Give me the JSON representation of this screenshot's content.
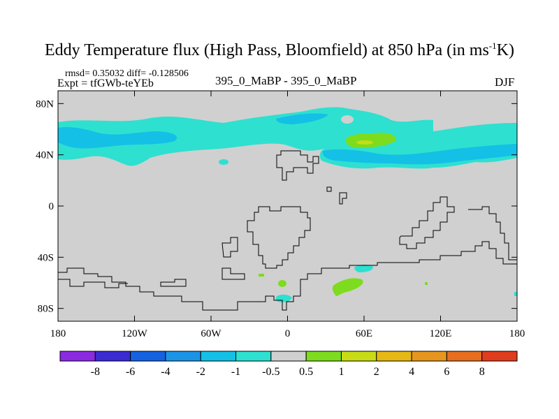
{
  "header": {
    "title_main": "Eddy Temperature flux (High Pass, Bloomfield) at 850 hPa (in ms",
    "title_sup": "-1",
    "title_end": "K)",
    "stats": "rmsd= 0.35032 diff= -0.128506",
    "expt": "Expt = tfGWb-teYEb",
    "center_label": "395_0_MaBP - 395_0_MaBP",
    "season": "DJF"
  },
  "chart_data": {
    "type": "heatmap",
    "title": "Eddy Temperature flux (High Pass, Bloomfield) at 850 hPa (in ms-1K)",
    "x_axis": {
      "range": [
        -180,
        180
      ],
      "ticks": [
        "180",
        "120W",
        "60W",
        "0",
        "60E",
        "120E",
        "180"
      ],
      "values": [
        -180,
        -120,
        -60,
        0,
        60,
        120,
        180
      ]
    },
    "y_axis": {
      "range": [
        -90,
        90
      ],
      "ticks": [
        "80N",
        "40N",
        "0",
        "40S",
        "80S"
      ],
      "values": [
        80,
        40,
        0,
        -40,
        -80
      ]
    },
    "colorbar": {
      "labels": [
        "-8",
        "-6",
        "-4",
        "-2",
        "-1",
        "-0.5",
        "0.5",
        "1",
        "2",
        "4",
        "6",
        "8"
      ],
      "colors": [
        "#8a2be2",
        "#3a2bd2",
        "#1462e0",
        "#1c94e6",
        "#14c0e6",
        "#2ee0d0",
        "#d0d0d0",
        "#7ddc1e",
        "#c8dc16",
        "#e6b814",
        "#e6961e",
        "#e66e1e",
        "#e03c1e"
      ]
    },
    "background_color": "#d0d0d0",
    "regions": [
      {
        "name": "north-band-west",
        "level": "-1"
      },
      {
        "name": "north-band-east",
        "level": "-1"
      },
      {
        "name": "north-core-west",
        "level": "-2"
      },
      {
        "name": "north-core-east",
        "level": "-2"
      },
      {
        "name": "north-positive-blob",
        "level": "1"
      },
      {
        "name": "south-positive-blob",
        "level": "1"
      },
      {
        "name": "south-negative-blob",
        "level": "-1"
      }
    ]
  }
}
